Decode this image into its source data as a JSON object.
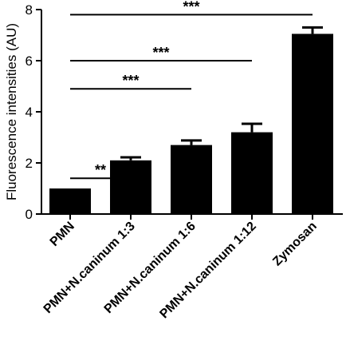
{
  "chart_data": {
    "type": "bar",
    "title": "",
    "xlabel": "",
    "ylabel": "Fluorescence intensities (AU)",
    "ylim": [
      0,
      8
    ],
    "yticks": [
      0,
      2,
      4,
      6,
      8
    ],
    "categories": [
      "PMN",
      "PMN+N.caninum 1:3",
      "PMN+N.caninum 1:6",
      "PMN+N.caninum 1:12",
      "Zymosan"
    ],
    "values": [
      1.0,
      2.1,
      2.7,
      3.2,
      7.05
    ],
    "errors": [
      0.0,
      0.12,
      0.18,
      0.33,
      0.25
    ],
    "bar_color": "#000000",
    "grid": false,
    "legend": "none",
    "significance": [
      {
        "from": "PMN",
        "to": "PMN+N.caninum 1:3",
        "level": 1.4,
        "label": "**"
      },
      {
        "from": "PMN",
        "to": "PMN+N.caninum 1:6",
        "level": 4.9,
        "label": "***"
      },
      {
        "from": "PMN",
        "to": "PMN+N.caninum 1:12",
        "level": 6.0,
        "label": "***"
      },
      {
        "from": "PMN",
        "to": "Zymosan",
        "level": 7.8,
        "label": "***"
      }
    ]
  }
}
